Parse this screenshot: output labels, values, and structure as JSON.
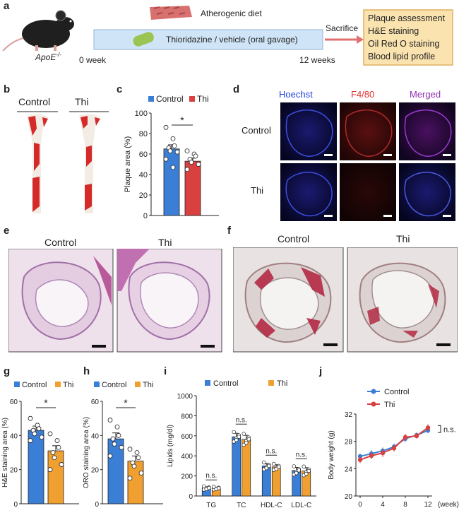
{
  "panel_letters": {
    "a": "a",
    "b": "b",
    "c": "c",
    "d": "d",
    "e": "e",
    "f": "f",
    "g": "g",
    "h": "h",
    "i": "i",
    "j": "j"
  },
  "panel_a": {
    "mouse_label": "ApoE",
    "mouse_sup": "-/-",
    "diet": "Atherogenic diet",
    "treatment": "Thioridazine / vehicle (oral gavage)",
    "start": "0 week",
    "end": "12 weeks",
    "sacrifice": "Sacrifice",
    "assessments": [
      "Plaque assessment",
      "H&E staining",
      "Oil Red O staining",
      "Blood lipid profile"
    ]
  },
  "panel_b": {
    "labels": [
      "Control",
      "Thi"
    ]
  },
  "panel_d": {
    "col_headers": [
      "Hoechst",
      "F4/80",
      "Merged"
    ],
    "row_labels": [
      "Control",
      "Thi"
    ]
  },
  "panel_e": {
    "labels": [
      "Control",
      "Thi"
    ]
  },
  "panel_f": {
    "labels": [
      "Control",
      "Thi"
    ]
  },
  "colors": {
    "control_blue": "#3a7fd5",
    "thi_red": "#d94040",
    "thi_orange": "#f0a030",
    "box_fill": "#fbe3b0",
    "bar_fill": "#cfe4f7"
  },
  "chart_data": [
    {
      "panel": "c",
      "type": "bar",
      "categories": [
        "Control",
        "Thi"
      ],
      "values": [
        65,
        53
      ],
      "errors": [
        4,
        3
      ],
      "points": [
        [
          86,
          75,
          68,
          66,
          63,
          62,
          55,
          47
        ],
        [
          63,
          60,
          58,
          55,
          52,
          50,
          45
        ]
      ],
      "legend": [
        "Control",
        "Thi"
      ],
      "colors": [
        "#3a7fd5",
        "#d94040"
      ],
      "ylabel": "Plaque area (%)",
      "ylim": [
        0,
        100
      ],
      "yticks": [
        0,
        20,
        40,
        60,
        80,
        100
      ],
      "annotation": "*"
    },
    {
      "panel": "g",
      "type": "bar",
      "categories": [
        "Control",
        "Thi"
      ],
      "values": [
        43,
        31
      ],
      "errors": [
        2.5,
        3
      ],
      "points": [
        [
          50,
          46,
          44,
          43,
          41,
          39,
          37
        ],
        [
          41,
          37,
          33,
          30,
          27,
          23,
          20
        ]
      ],
      "legend": [
        "Control",
        "Thi"
      ],
      "colors": [
        "#3a7fd5",
        "#f0a030"
      ],
      "ylabel": "H&E staining area (%)",
      "ylim": [
        0,
        60
      ],
      "yticks": [
        0,
        20,
        40,
        60
      ],
      "annotation": "*"
    },
    {
      "panel": "h",
      "type": "bar",
      "categories": [
        "Control",
        "Thi"
      ],
      "values": [
        38,
        25
      ],
      "errors": [
        3.5,
        3
      ],
      "points": [
        [
          49,
          45,
          40,
          38,
          35,
          33,
          28
        ],
        [
          32,
          30,
          27,
          24,
          22,
          18,
          15
        ]
      ],
      "legend": [
        "Control",
        "Thi"
      ],
      "colors": [
        "#3a7fd5",
        "#f0a030"
      ],
      "ylabel": "ORO staining area (%)",
      "ylim": [
        0,
        60
      ],
      "yticks": [
        0,
        20,
        40,
        60
      ],
      "annotation": "*"
    },
    {
      "panel": "i",
      "type": "bar",
      "categories": [
        "TG",
        "TC",
        "HDL-C",
        "LDL-C"
      ],
      "series": [
        {
          "name": "Control",
          "values": [
            80,
            590,
            300,
            255
          ],
          "errors": [
            12,
            35,
            25,
            30
          ]
        },
        {
          "name": "Thi",
          "values": [
            78,
            565,
            290,
            250
          ],
          "errors": [
            10,
            40,
            22,
            32
          ]
        }
      ],
      "colors": [
        "#3a7fd5",
        "#f0a030"
      ],
      "ylabel": "Lipids (mg/dl)",
      "ylim": [
        0,
        1000
      ],
      "yticks": [
        0,
        200,
        400,
        600,
        800,
        1000
      ],
      "annotations": [
        "n.s.",
        "n.s.",
        "n.s.",
        "n.s."
      ]
    },
    {
      "panel": "j",
      "type": "line",
      "x": [
        0,
        2,
        4,
        6,
        8,
        10,
        12
      ],
      "series": [
        {
          "name": "Control",
          "values": [
            25.8,
            26.2,
            26.6,
            27.2,
            28.4,
            28.9,
            29.6
          ],
          "errors": [
            0.4,
            0.5,
            0.5,
            0.5,
            0.5,
            0.4,
            0.4
          ]
        },
        {
          "name": "Thi",
          "values": [
            25.3,
            25.9,
            26.3,
            27.0,
            28.6,
            28.8,
            30.0
          ],
          "errors": [
            0.5,
            0.5,
            0.6,
            0.5,
            0.5,
            0.4,
            0.5
          ]
        }
      ],
      "colors": [
        "#3a7fd5",
        "#d94040"
      ],
      "xlabel": "(week)",
      "ylabel": "Body weight (g)",
      "xticks": [
        0,
        4,
        8,
        12
      ],
      "ylim": [
        20,
        32
      ],
      "yticks": [
        20,
        24,
        28,
        32
      ],
      "annotation": "n.s."
    }
  ]
}
